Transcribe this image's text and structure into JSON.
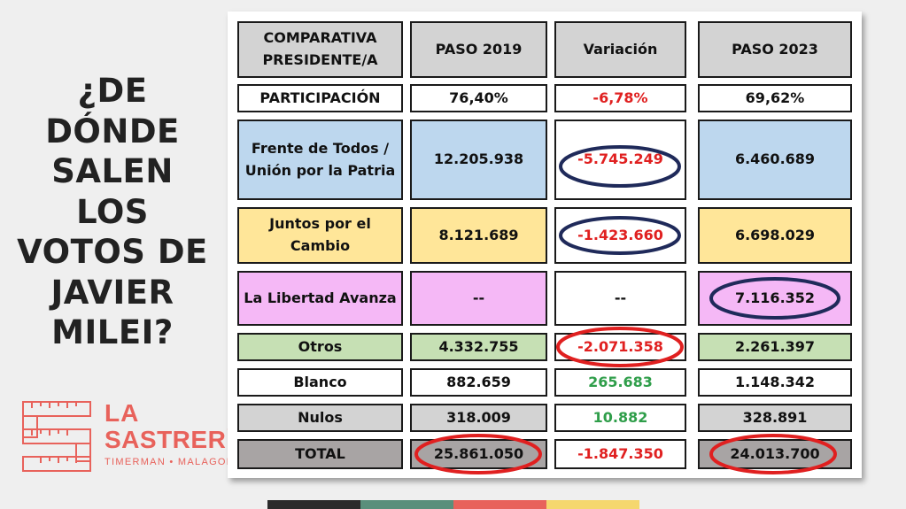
{
  "headline": [
    "¿DE",
    "DÓNDE",
    "SALEN",
    "LOS",
    "VOTOS DE",
    "JAVIER",
    "MILEI?"
  ],
  "logo": {
    "line1": "LA",
    "line2": "SASTRERÍA",
    "subtitle": "TIMERMAN • MALAGOLI",
    "color": "#e8625b"
  },
  "table": {
    "headers": [
      "COMPARATIVA PRESIDENTE/A",
      "PASO 2019",
      "Variación",
      "PASO 2023"
    ],
    "rows": [
      {
        "label": "PARTICIPACIÓN",
        "paso2019": "76,40%",
        "variacion": "-6,78%",
        "paso2023": "69,62%"
      },
      {
        "label": "Frente de Todos / Unión por la Patria",
        "paso2019": "12.205.938",
        "variacion": "-5.745.249",
        "paso2023": "6.460.689"
      },
      {
        "label": "Juntos por el Cambio",
        "paso2019": "8.121.689",
        "variacion": "-1.423.660",
        "paso2023": "6.698.029"
      },
      {
        "label": "La Libertad Avanza",
        "paso2019": "--",
        "variacion": "--",
        "paso2023": "7.116.352"
      },
      {
        "label": "Otros",
        "paso2019": "4.332.755",
        "variacion": "-2.071.358",
        "paso2023": "2.261.397"
      },
      {
        "label": "Blanco",
        "paso2019": "882.659",
        "variacion": "265.683",
        "paso2023": "1.148.342"
      },
      {
        "label": "Nulos",
        "paso2019": "318.009",
        "variacion": "10.882",
        "paso2023": "328.891"
      },
      {
        "label": "TOTAL",
        "paso2019": "25.861.050",
        "variacion": "-1.847.350",
        "paso2023": "24.013.700"
      }
    ]
  },
  "colors": {
    "header_bg": "#d3d3d3",
    "fdt_bg": "#bdd7ee",
    "jxc_bg": "#ffe699",
    "lla_bg": "#f5b8f6",
    "otros_bg": "#c6e0b4",
    "total_bg": "#a8a4a4",
    "negative_text": "#e02020",
    "positive_text": "#2f9e4a",
    "navy_circle": "#1f2a5a",
    "red_circle": "#e02020"
  },
  "bottom_bar_colors": [
    "#2b2b2b",
    "#5a8f7b",
    "#e8625b",
    "#f5d76e"
  ]
}
